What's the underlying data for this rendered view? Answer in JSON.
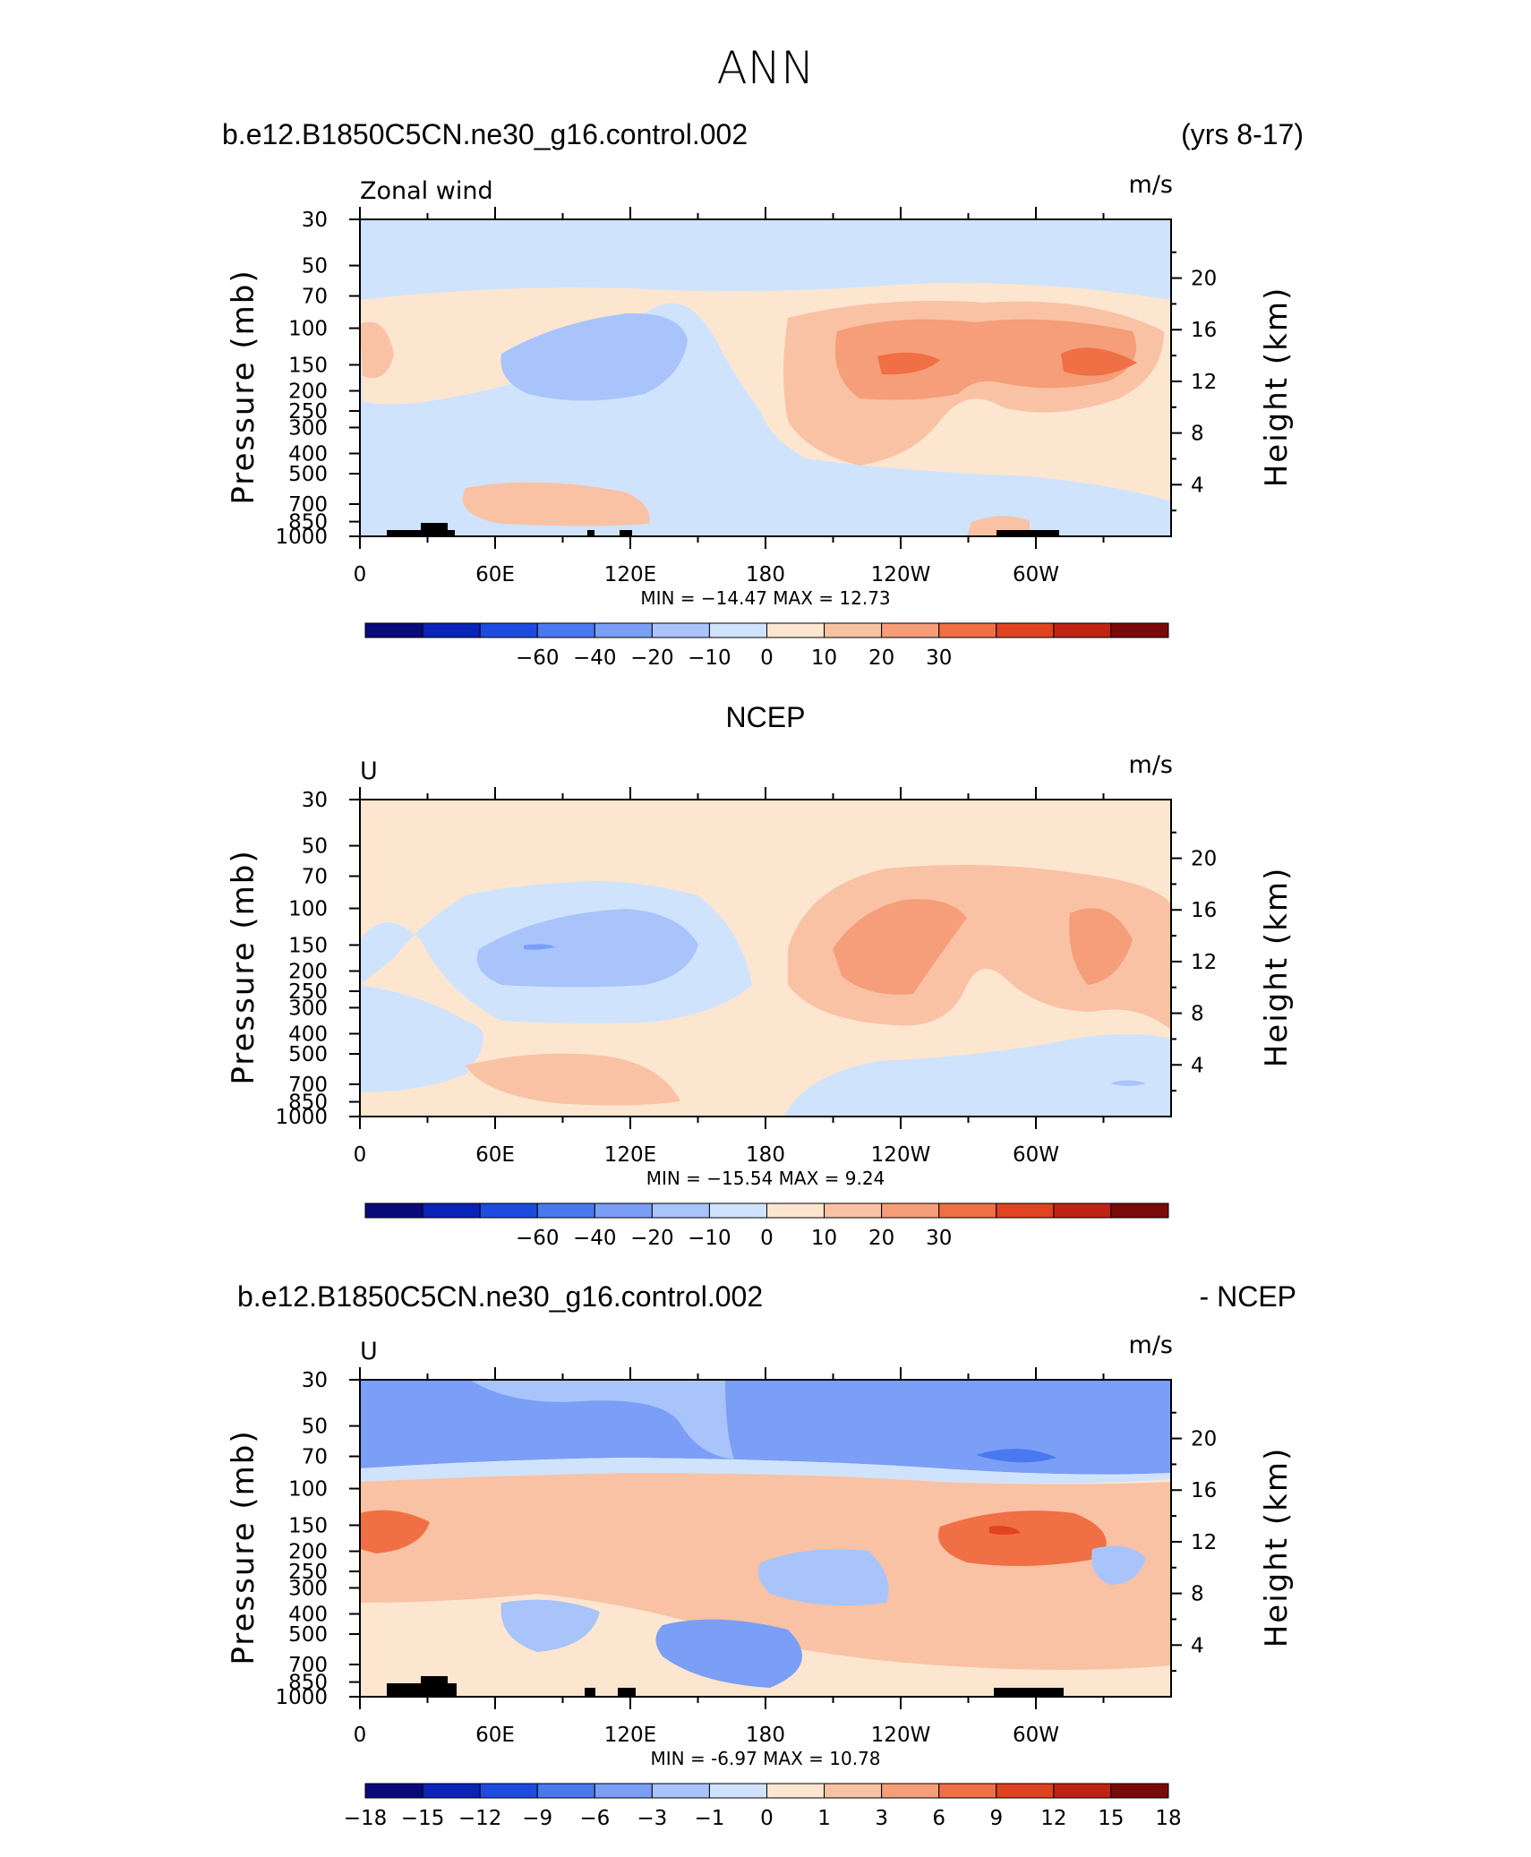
{
  "figure": {
    "title": "ANN",
    "panels": [
      {
        "id": "model",
        "title_left": "b.e12.B1850C5CN.ne30_g16.control.002",
        "title_center": "",
        "title_right": "(yrs 8-17)",
        "label_left": "Zonal wind",
        "label_right": "m/s",
        "minmax": "MIN = −14.47   MAX =   12.73"
      },
      {
        "id": "obs",
        "title_left": "",
        "title_center": "NCEP",
        "title_right": "",
        "label_left": "U",
        "label_right": "m/s",
        "minmax": "MIN = −15.54   MAX =    9.24"
      },
      {
        "id": "diff",
        "title_left": "b.e12.B1850C5CN.ne30_g16.control.002",
        "title_center": "",
        "title_right": "- NCEP",
        "label_left": "U",
        "label_right": "m/s",
        "minmax": "MIN =    -6.97   MAX =   10.78"
      }
    ]
  },
  "chart_data": [
    {
      "type": "heatmap",
      "field": "Zonal wind",
      "units": "m/s",
      "xlabel": "",
      "ylabel": "Pressure (mb)",
      "ylabel_right": "Height (km)",
      "x_ticks": [
        "0",
        "60E",
        "120E",
        "180",
        "120W",
        "60W"
      ],
      "y_ticks": [
        "30",
        "50",
        "70",
        "100",
        "150",
        "200",
        "250",
        "300",
        "400",
        "500",
        "700",
        "850",
        "1000"
      ],
      "y_ticks_right": [
        "20",
        "16",
        "12",
        "8",
        "4"
      ],
      "min": -14.47,
      "max": 12.73,
      "colorbar_labels": [
        "−60",
        "−40",
        "−20",
        "−10",
        "0",
        "10",
        "20",
        "30"
      ]
    },
    {
      "type": "heatmap",
      "field": "U",
      "units": "m/s",
      "xlabel": "",
      "ylabel": "Pressure (mb)",
      "ylabel_right": "Height (km)",
      "x_ticks": [
        "0",
        "60E",
        "120E",
        "180",
        "120W",
        "60W"
      ],
      "y_ticks": [
        "30",
        "50",
        "70",
        "100",
        "150",
        "200",
        "250",
        "300",
        "400",
        "500",
        "700",
        "850",
        "1000"
      ],
      "y_ticks_right": [
        "20",
        "16",
        "12",
        "8",
        "4"
      ],
      "min": -15.54,
      "max": 9.24,
      "colorbar_labels": [
        "−60",
        "−40",
        "−20",
        "−10",
        "0",
        "10",
        "20",
        "30"
      ]
    },
    {
      "type": "heatmap",
      "field": "U",
      "units": "m/s",
      "xlabel": "",
      "ylabel": "Pressure (mb)",
      "ylabel_right": "Height (km)",
      "x_ticks": [
        "0",
        "60E",
        "120E",
        "180",
        "120W",
        "60W"
      ],
      "y_ticks": [
        "30",
        "50",
        "70",
        "100",
        "150",
        "200",
        "250",
        "300",
        "400",
        "500",
        "700",
        "850",
        "1000"
      ],
      "y_ticks_right": [
        "20",
        "16",
        "12",
        "8",
        "4"
      ],
      "min": -6.97,
      "max": 10.78,
      "colorbar_labels": [
        "−18",
        "−15",
        "−12",
        "−9",
        "−6",
        "−3",
        "−1",
        "0",
        "1",
        "3",
        "6",
        "9",
        "12",
        "15",
        "18"
      ]
    }
  ],
  "colors": {
    "palette": [
      "#0a0a7a",
      "#0a23b8",
      "#1e4bdf",
      "#4a79ef",
      "#7b9ef6",
      "#a9c4fb",
      "#d0e3fc",
      "#fde6d0",
      "#f9c2a4",
      "#f59e79",
      "#f06f45",
      "#e0431f",
      "#bf2313",
      "#7a0a0a"
    ],
    "land": "#000000",
    "frame": "#000000"
  }
}
